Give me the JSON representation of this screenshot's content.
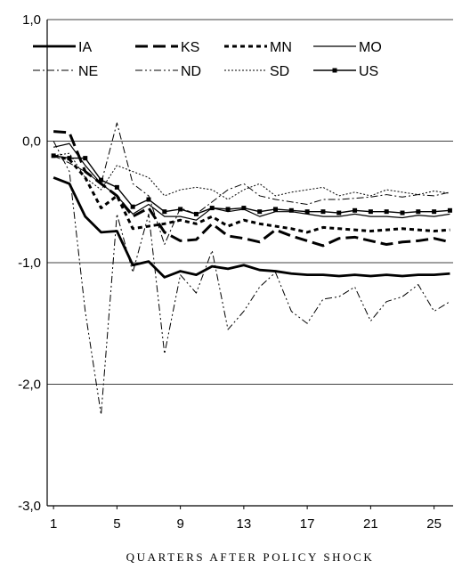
{
  "chart_data": {
    "type": "line",
    "title": "",
    "xlabel": "QUARTERS AFTER POLICY SHOCK",
    "ylabel": "",
    "xlim": [
      1,
      26
    ],
    "ylim": [
      -3.0,
      1.0
    ],
    "x_ticks": [
      1,
      5,
      9,
      13,
      17,
      21,
      25
    ],
    "x_tick_labels": [
      "1",
      "5",
      "9",
      "13",
      "17",
      "21",
      "25"
    ],
    "y_ticks": [
      1.0,
      0.0,
      -1.0,
      -2.0,
      -3.0
    ],
    "y_tick_labels": [
      "1,0",
      "0,0",
      "-1,0",
      "-2,0",
      "-3,0"
    ],
    "gridlines": "horizontal",
    "legend_position": "top",
    "x": [
      1,
      2,
      3,
      4,
      5,
      6,
      7,
      8,
      9,
      10,
      11,
      12,
      13,
      14,
      15,
      16,
      17,
      18,
      19,
      20,
      21,
      22,
      23,
      24,
      25,
      26
    ],
    "series": [
      {
        "name": "IA",
        "style": "solid-thick",
        "values": [
          -0.3,
          -0.35,
          -0.62,
          -0.75,
          -0.74,
          -1.02,
          -0.99,
          -1.12,
          -1.07,
          -1.1,
          -1.03,
          -1.05,
          -1.02,
          -1.06,
          -1.07,
          -1.09,
          -1.1,
          -1.1,
          -1.11,
          -1.1,
          -1.11,
          -1.1,
          -1.11,
          -1.1,
          -1.1,
          -1.09
        ]
      },
      {
        "name": "KS",
        "style": "long-dash-thick",
        "values": [
          0.08,
          0.07,
          -0.25,
          -0.35,
          -0.45,
          -0.62,
          -0.55,
          -0.75,
          -0.82,
          -0.81,
          -0.68,
          -0.78,
          -0.8,
          -0.83,
          -0.73,
          -0.78,
          -0.82,
          -0.86,
          -0.8,
          -0.79,
          -0.82,
          -0.85,
          -0.83,
          -0.82,
          -0.8,
          -0.83
        ]
      },
      {
        "name": "MN",
        "style": "short-dash-thick",
        "values": [
          -0.12,
          -0.15,
          -0.3,
          -0.55,
          -0.45,
          -0.72,
          -0.7,
          -0.68,
          -0.65,
          -0.68,
          -0.62,
          -0.7,
          -0.65,
          -0.68,
          -0.7,
          -0.72,
          -0.75,
          -0.71,
          -0.72,
          -0.73,
          -0.74,
          -0.73,
          -0.72,
          -0.73,
          -0.74,
          -0.73
        ]
      },
      {
        "name": "MO",
        "style": "solid-thin",
        "values": [
          -0.05,
          -0.02,
          -0.2,
          -0.35,
          -0.45,
          -0.6,
          -0.52,
          -0.62,
          -0.62,
          -0.65,
          -0.55,
          -0.58,
          -0.56,
          -0.62,
          -0.58,
          -0.58,
          -0.6,
          -0.62,
          -0.62,
          -0.6,
          -0.62,
          -0.62,
          -0.63,
          -0.61,
          -0.62,
          -0.6
        ]
      },
      {
        "name": "NE",
        "style": "dash-dot-thin",
        "values": [
          -0.12,
          -0.18,
          -0.25,
          -0.35,
          0.15,
          -0.35,
          -0.45,
          -0.85,
          -0.55,
          -0.6,
          -0.5,
          -0.4,
          -0.35,
          -0.45,
          -0.48,
          -0.5,
          -0.52,
          -0.48,
          -0.48,
          -0.47,
          -0.46,
          -0.44,
          -0.46,
          -0.44,
          -0.45,
          -0.42
        ]
      },
      {
        "name": "ND",
        "style": "dash-dot-dot-thin",
        "values": [
          0.0,
          -0.25,
          -1.4,
          -2.25,
          -0.6,
          -1.08,
          -0.6,
          -1.75,
          -1.1,
          -1.25,
          -0.9,
          -1.55,
          -1.4,
          -1.2,
          -1.08,
          -1.4,
          -1.5,
          -1.3,
          -1.28,
          -1.2,
          -1.48,
          -1.32,
          -1.28,
          -1.18,
          -1.4,
          -1.32
        ]
      },
      {
        "name": "SD",
        "style": "dotted-thin",
        "values": [
          -0.12,
          -0.1,
          -0.3,
          -0.4,
          -0.2,
          -0.25,
          -0.3,
          -0.45,
          -0.4,
          -0.38,
          -0.4,
          -0.48,
          -0.4,
          -0.35,
          -0.45,
          -0.42,
          -0.4,
          -0.38,
          -0.45,
          -0.42,
          -0.45,
          -0.4,
          -0.42,
          -0.44,
          -0.41,
          -0.43
        ]
      },
      {
        "name": "US",
        "style": "solid-square-markers",
        "values": [
          -0.12,
          -0.14,
          -0.14,
          -0.32,
          -0.38,
          -0.54,
          -0.48,
          -0.58,
          -0.56,
          -0.6,
          -0.55,
          -0.56,
          -0.55,
          -0.58,
          -0.56,
          -0.57,
          -0.58,
          -0.58,
          -0.59,
          -0.57,
          -0.58,
          -0.58,
          -0.59,
          -0.58,
          -0.58,
          -0.57
        ]
      }
    ]
  }
}
